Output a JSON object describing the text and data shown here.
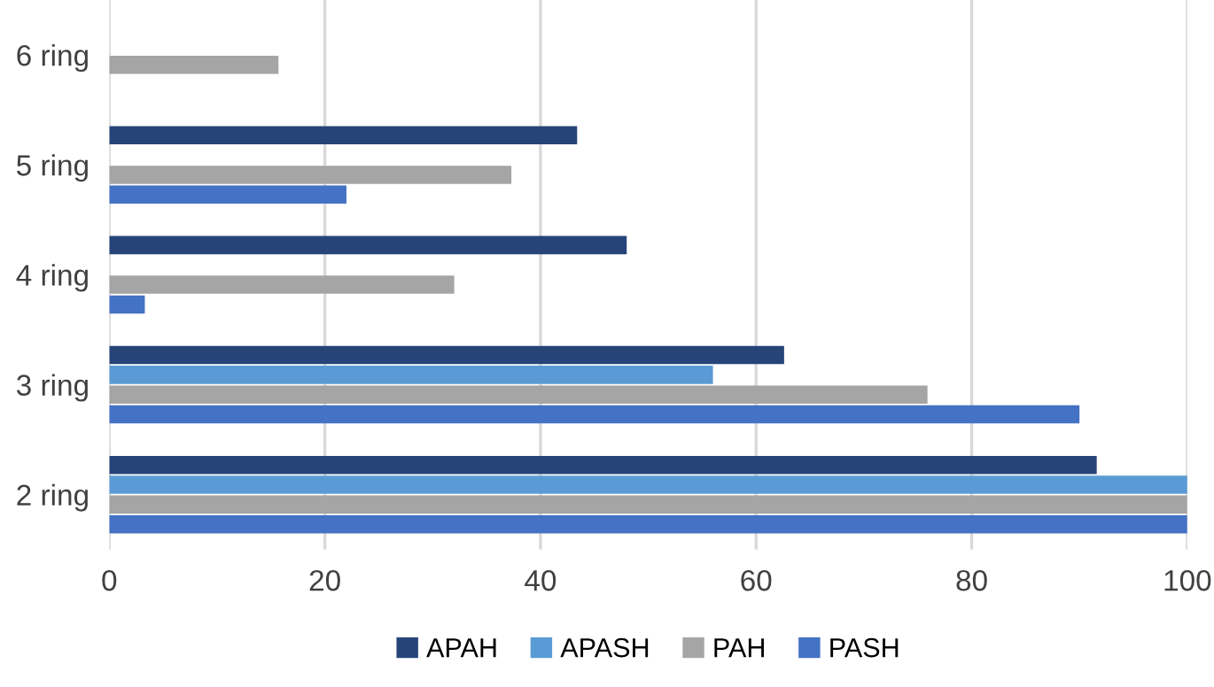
{
  "chart_data": {
    "type": "bar",
    "orientation": "horizontal",
    "categories": [
      "6 ring",
      "5 ring",
      "4 ring",
      "3 ring",
      "2 ring"
    ],
    "series": [
      {
        "name": "APAH",
        "color": "#264478",
        "values": [
          null,
          43.4,
          48.0,
          62.6,
          91.6
        ]
      },
      {
        "name": "APASH",
        "color": "#5b9bd5",
        "values": [
          null,
          null,
          null,
          56.0,
          100
        ]
      },
      {
        "name": "PAH",
        "color": "#a5a5a5",
        "values": [
          15.7,
          37.3,
          32.0,
          75.9,
          100
        ]
      },
      {
        "name": "PASH",
        "color": "#4472c4",
        "values": [
          null,
          22.0,
          3.3,
          90.0,
          100
        ]
      }
    ],
    "xlim": [
      0,
      100
    ],
    "xticks": [
      0,
      20,
      40,
      60,
      80,
      100
    ],
    "grid": "x",
    "legend": "bottom"
  }
}
